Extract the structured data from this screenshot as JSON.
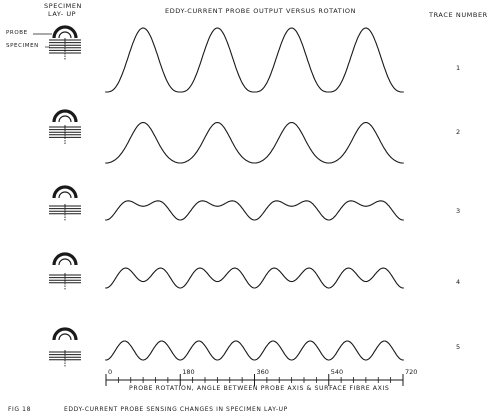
{
  "header": {
    "specimen_label_line1": "SPECIMEN",
    "specimen_label_line2": "LAY- UP",
    "title": "EDDY-CURRENT PROBE OUTPUT VERSUS ROTATION",
    "trace_number_label": "TRACE NUMBER"
  },
  "schematic_labels": {
    "probe": "PROBE",
    "specimen": "SPECIMEN"
  },
  "chart_data": {
    "type": "line",
    "title": "EDDY-CURRENT PROBE OUTPUT VERSUS ROTATION",
    "xlabel": "PROBE ROTATION, ANGLE BETWEEN PROBE AXIS & SURFACE FIBRE AXIS",
    "ylabel": "",
    "xlim": [
      0,
      720
    ],
    "xticks": [
      "0",
      "180",
      "360",
      "540",
      "720"
    ],
    "series": [
      {
        "trace": "1",
        "style": "deep-single",
        "amplitude": 1.0,
        "peaks_at": [
          90,
          270,
          450,
          630
        ]
      },
      {
        "trace": "2",
        "style": "single-with-shoulders",
        "amplitude": 0.8,
        "peaks_at": [
          90,
          270,
          450,
          630
        ]
      },
      {
        "trace": "3",
        "style": "double-unequal",
        "amplitude": 0.45,
        "peaks_at": [
          90,
          270,
          450,
          630
        ]
      },
      {
        "trace": "4",
        "style": "double-near-equal",
        "amplitude": 0.35,
        "peaks_at": [
          90,
          270,
          450,
          630
        ]
      },
      {
        "trace": "5",
        "style": "double-equal",
        "amplitude": 0.18,
        "peaks_at": [
          45,
          135,
          225,
          315,
          405,
          495,
          585,
          675
        ]
      }
    ]
  },
  "figure_caption": {
    "fig_no": "FIG 18",
    "text": "EDDY-CURRENT PROBE SENSING CHANGES IN SPECIMEN LAY-UP"
  }
}
